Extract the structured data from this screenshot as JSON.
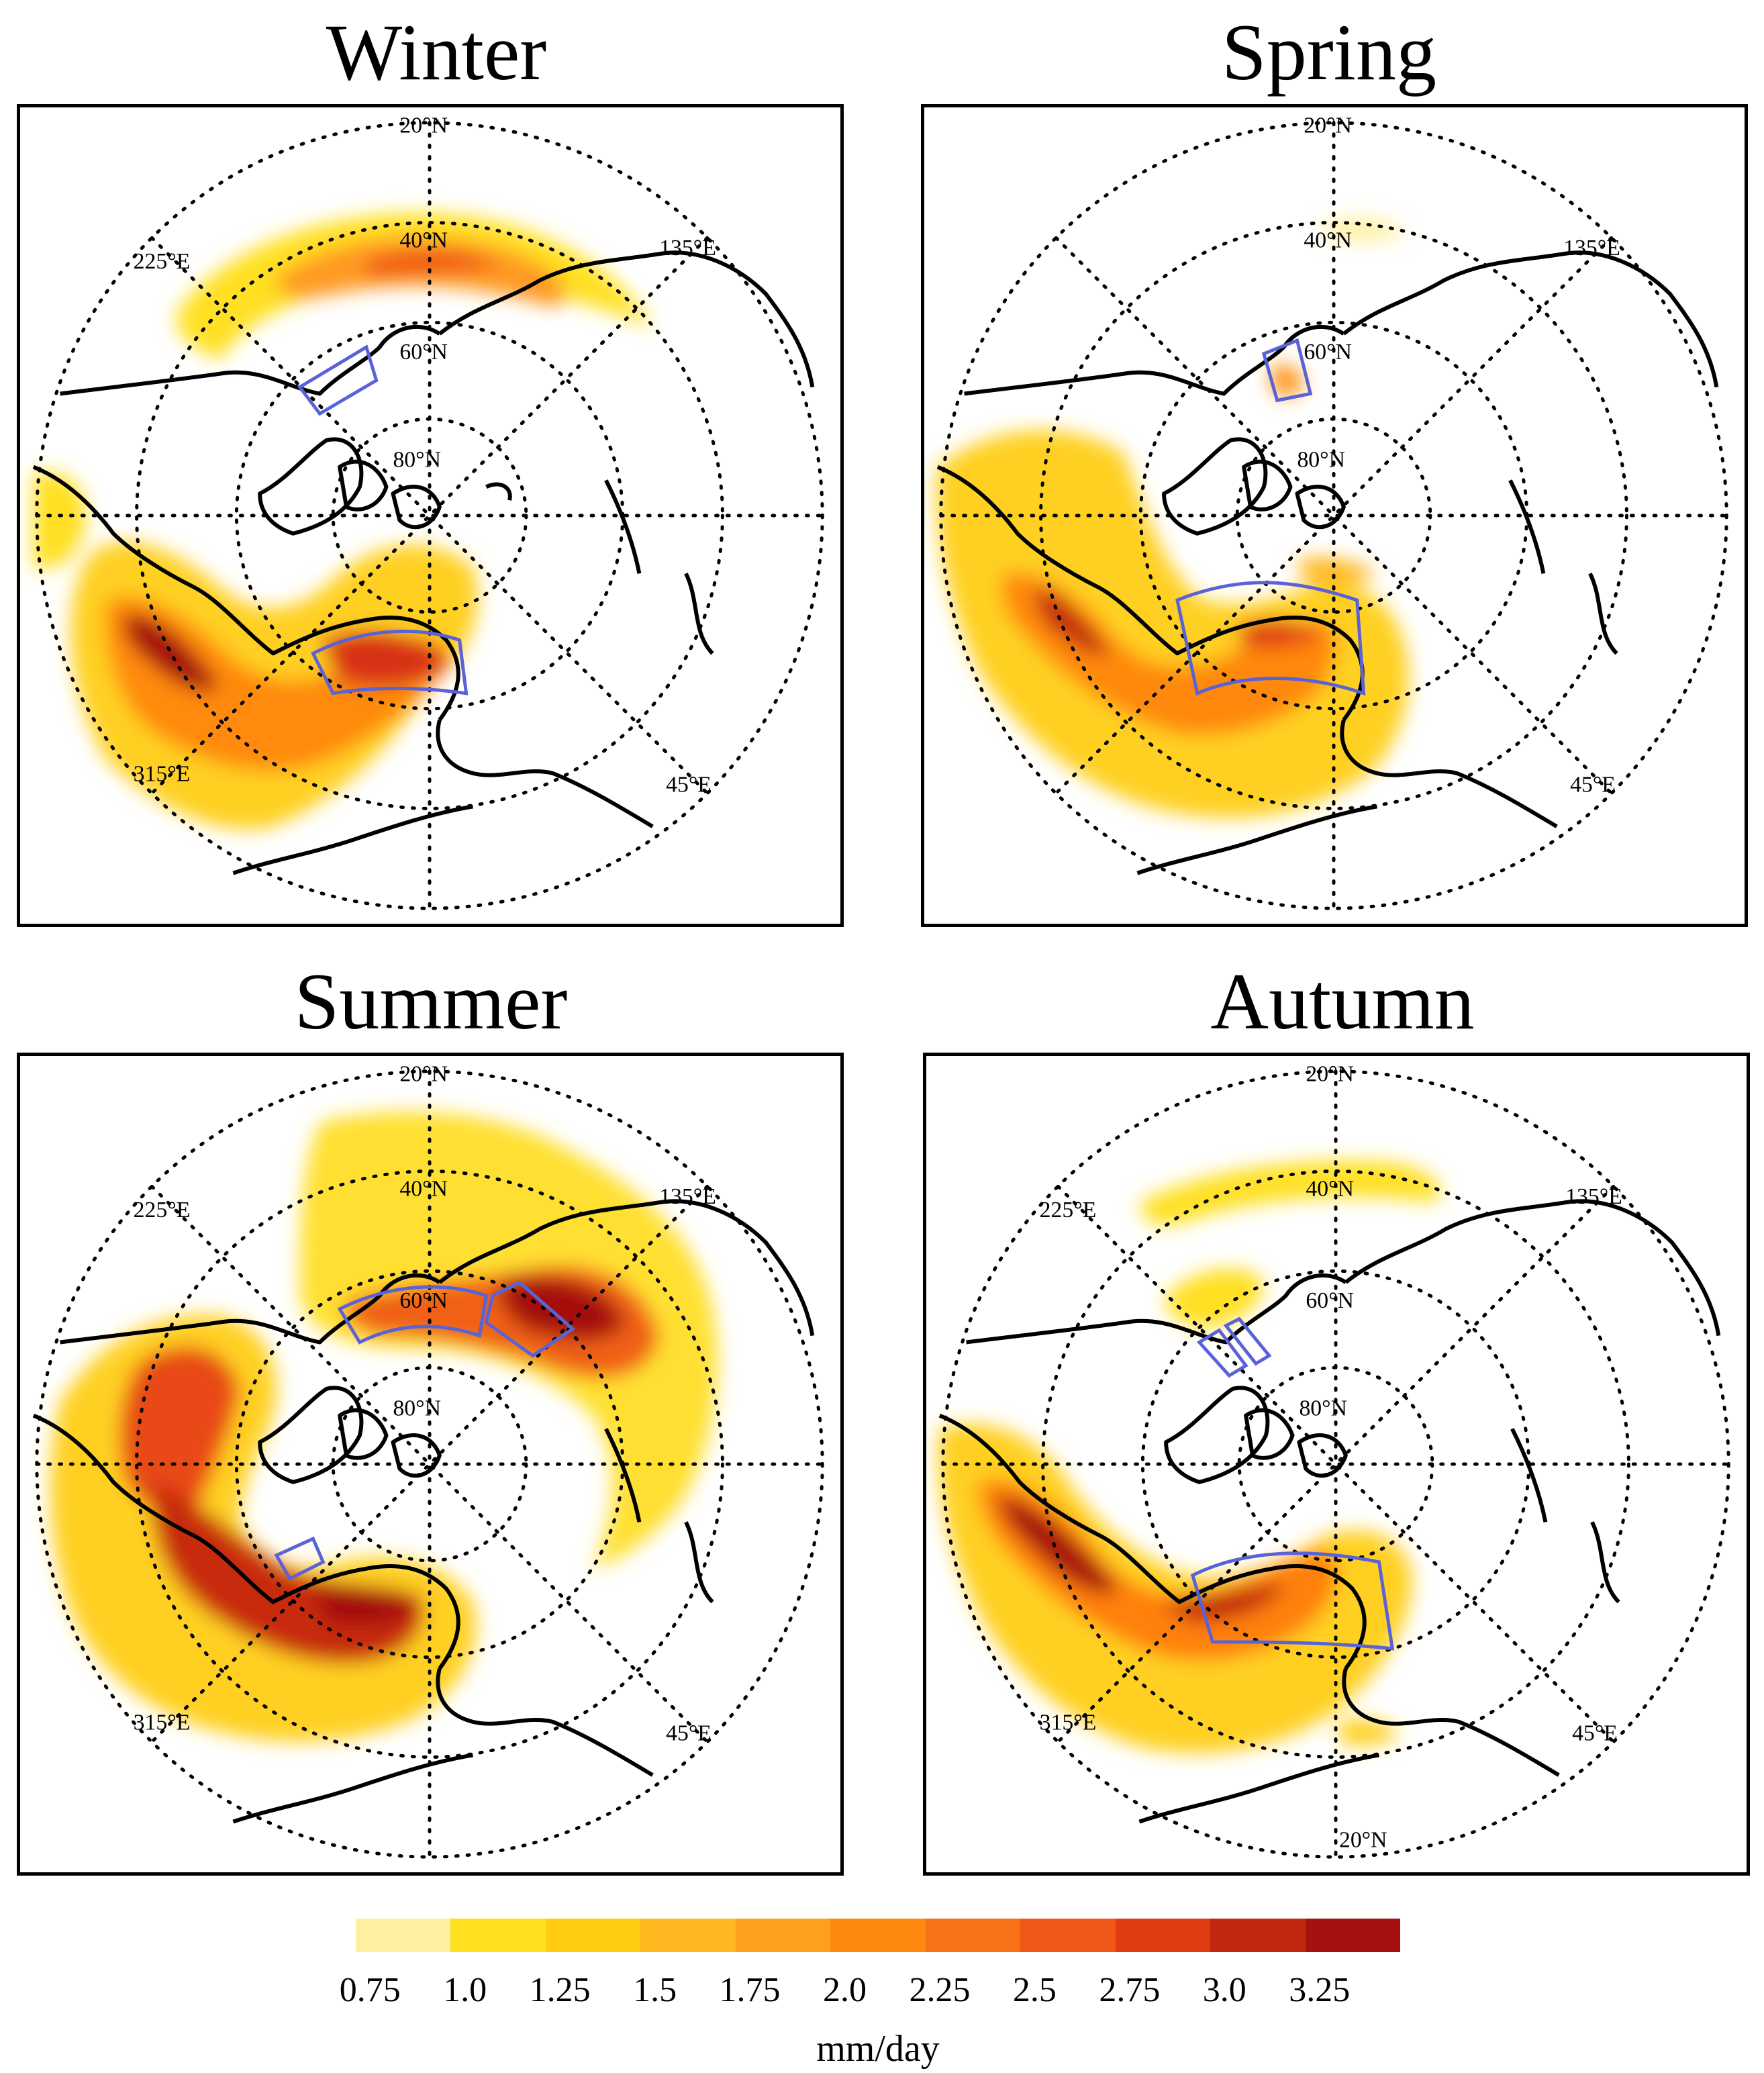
{
  "panels": [
    {
      "id": "winter",
      "title": "Winter",
      "labels": {
        "lat20": "20°N",
        "lat40": "40°N",
        "lat60": "60°N",
        "lat80": "80°N",
        "lon135": "135°E",
        "lon225": "225°E",
        "lon315": "315°E",
        "lon45": "45°E"
      }
    },
    {
      "id": "spring",
      "title": "Spring",
      "labels": {
        "lat20": "20°N",
        "lat40": "40°N",
        "lat60": "60°N",
        "lat80": "80°N",
        "lon135": "135°E",
        "lon45": "45°E"
      }
    },
    {
      "id": "summer",
      "title": "Summer",
      "labels": {
        "lat20": "20°N",
        "lat40": "40°N",
        "lat60": "60°N",
        "lat80": "80°N",
        "lon135": "135°E",
        "lon225": "225°E",
        "lon315": "315°E",
        "lon45": "45°E"
      }
    },
    {
      "id": "autumn",
      "title": "Autumn",
      "labels": {
        "lat20": "20°N",
        "lat40": "40°N",
        "lat60": "60°N",
        "lat80": "80°N",
        "lon135": "135°E",
        "lon225": "225°E",
        "lon315": "315°E",
        "lon45": "45°E",
        "lat20_bottom": "20°N"
      }
    }
  ],
  "colorbar": {
    "ticks": [
      "0.75",
      "1.0",
      "1.25",
      "1.5",
      "1.75",
      "2.0",
      "2.25",
      "2.5",
      "2.75",
      "3.0",
      "3.25"
    ],
    "colors": [
      "#fff0a0",
      "#ffe020",
      "#ffcc10",
      "#ffb820",
      "#ffa020",
      "#ff8810",
      "#f87018",
      "#f05818",
      "#e03c14",
      "#c02810",
      "#a51010"
    ],
    "unit": "mm/day"
  },
  "region_box_color": "#5a62d8"
}
